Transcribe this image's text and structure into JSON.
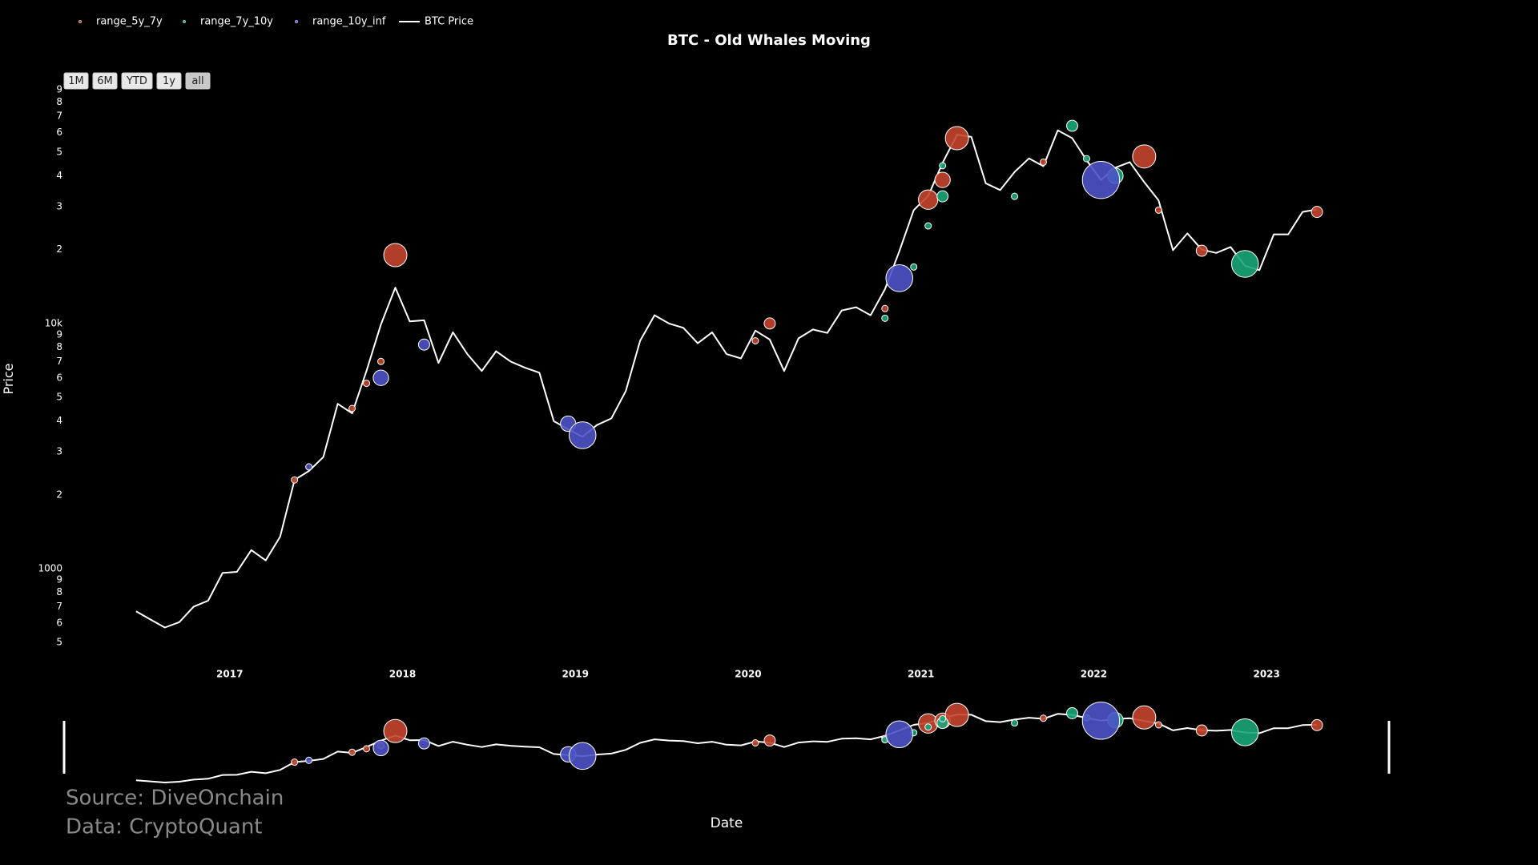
{
  "chart_data": {
    "type": "line",
    "title": "BTC - Old Whales Moving",
    "xlabel": "Date",
    "ylabel": "Price",
    "log_y": true,
    "legend": "top-left",
    "range_buttons": [
      "1M",
      "6M",
      "YTD",
      "1y",
      "all"
    ],
    "annotations": [
      "Source: DiveOnchain",
      "Data: CryptoQuant"
    ],
    "xlim": [
      "2016-01",
      "2023-09"
    ],
    "xticks": [
      "2017",
      "2018",
      "2019",
      "2020",
      "2021",
      "2022",
      "2023"
    ],
    "ylim": [
      437,
      91200
    ],
    "yticks": [
      {
        "value": 500,
        "label": "5"
      },
      {
        "value": 600,
        "label": "6"
      },
      {
        "value": 700,
        "label": "7"
      },
      {
        "value": 800,
        "label": "8"
      },
      {
        "value": 900,
        "label": "9"
      },
      1000,
      {
        "value": 2000,
        "label": "2"
      },
      {
        "value": 3000,
        "label": "3"
      },
      {
        "value": 4000,
        "label": "4"
      },
      {
        "value": 5000,
        "label": "5"
      },
      {
        "value": 6000,
        "label": "6"
      },
      {
        "value": 7000,
        "label": "7"
      },
      {
        "value": 8000,
        "label": "8"
      },
      {
        "value": 9000,
        "label": "9"
      },
      {
        "value": 10000,
        "label": "10k"
      },
      {
        "value": 20000,
        "label": "2"
      },
      {
        "value": 30000,
        "label": "3"
      },
      {
        "value": 40000,
        "label": "4"
      },
      {
        "value": 50000,
        "label": "5"
      },
      {
        "value": 60000,
        "label": "6"
      },
      {
        "value": 70000,
        "label": "7"
      },
      {
        "value": 80000,
        "label": "8"
      },
      {
        "value": 90000,
        "label": "9"
      }
    ],
    "series": [
      {
        "name": "range_5y_7y",
        "type": "scatter",
        "color": "#c4452d",
        "x": [
          "2017-05",
          "2017-09",
          "2017-10",
          "2017-11",
          "2017-12",
          "2020-01",
          "2020-02",
          "2020-10",
          "2021-01",
          "2021-02",
          "2021-03",
          "2021-09",
          "2022-04",
          "2022-05",
          "2022-08",
          "2023-04"
        ],
        "values": [
          2300,
          4500,
          5700,
          7000,
          19000,
          8500,
          10000,
          11500,
          32000,
          38500,
          57000,
          45500,
          48000,
          29000,
          19800,
          28500
        ],
        "sizes": [
          1,
          1,
          1,
          1,
          5,
          1,
          2,
          1,
          4,
          3,
          5,
          1,
          5,
          1,
          2,
          2
        ]
      },
      {
        "name": "range_7y_10y",
        "type": "scatter",
        "color": "#1aa67a",
        "x": [
          "2020-10",
          "2020-12",
          "2021-01",
          "2021-02",
          "2021-02",
          "2021-07",
          "2021-11",
          "2021-12",
          "2022-02",
          "2022-11"
        ],
        "values": [
          10500,
          17000,
          25000,
          33000,
          44000,
          33000,
          64000,
          47000,
          40000,
          17500
        ],
        "sizes": [
          1,
          1,
          1,
          2,
          1,
          1,
          2,
          1,
          3,
          6
        ]
      },
      {
        "name": "range_10y_inf",
        "type": "scatter",
        "color": "#4d53c6",
        "x": [
          "2017-06",
          "2017-11",
          "2018-02",
          "2018-12",
          "2019-01",
          "2020-11",
          "2022-01"
        ],
        "values": [
          2600,
          6000,
          8200,
          3900,
          3500,
          15300,
          38500
        ],
        "sizes": [
          1,
          3,
          2,
          3,
          6,
          6,
          9
        ]
      },
      {
        "name": "BTC Price",
        "type": "line",
        "color": "#ffffff",
        "x": [
          "2016-06",
          "2016-07",
          "2016-08",
          "2016-09",
          "2016-10",
          "2016-11",
          "2016-12",
          "2017-01",
          "2017-02",
          "2017-03",
          "2017-04",
          "2017-05",
          "2017-06",
          "2017-07",
          "2017-08",
          "2017-09",
          "2017-10",
          "2017-11",
          "2017-12",
          "2018-01",
          "2018-02",
          "2018-03",
          "2018-04",
          "2018-05",
          "2018-06",
          "2018-07",
          "2018-08",
          "2018-09",
          "2018-10",
          "2018-11",
          "2018-12",
          "2019-01",
          "2019-02",
          "2019-03",
          "2019-04",
          "2019-05",
          "2019-06",
          "2019-07",
          "2019-08",
          "2019-09",
          "2019-10",
          "2019-11",
          "2019-12",
          "2020-01",
          "2020-02",
          "2020-03",
          "2020-04",
          "2020-05",
          "2020-06",
          "2020-07",
          "2020-08",
          "2020-09",
          "2020-10",
          "2020-11",
          "2020-12",
          "2021-01",
          "2021-02",
          "2021-03",
          "2021-04",
          "2021-05",
          "2021-06",
          "2021-07",
          "2021-08",
          "2021-09",
          "2021-10",
          "2021-11",
          "2021-12",
          "2022-01",
          "2022-02",
          "2022-03",
          "2022-04",
          "2022-05",
          "2022-06",
          "2022-07",
          "2022-08",
          "2022-09",
          "2022-10",
          "2022-11",
          "2022-12",
          "2023-01",
          "2023-02",
          "2023-03",
          "2023-04"
        ],
        "values": [
          670,
          620,
          575,
          605,
          700,
          740,
          960,
          970,
          1190,
          1080,
          1350,
          2300,
          2500,
          2850,
          4700,
          4300,
          6400,
          9900,
          14000,
          10200,
          10300,
          6900,
          9200,
          7500,
          6400,
          7700,
          7000,
          6600,
          6300,
          4000,
          3700,
          3450,
          3850,
          4100,
          5300,
          8500,
          10800,
          10000,
          9600,
          8300,
          9200,
          7500,
          7200,
          9350,
          8600,
          6400,
          8700,
          9450,
          9150,
          11300,
          11650,
          10800,
          13800,
          19700,
          29000,
          33100,
          45200,
          58800,
          57700,
          37300,
          35000,
          41500,
          47100,
          43800,
          61300,
          57000,
          46300,
          38500,
          43200,
          45500,
          37700,
          31800,
          19900,
          23300,
          20000,
          19400,
          20500,
          17200,
          16500,
          23100,
          23100,
          28500,
          29200
        ]
      }
    ]
  }
}
